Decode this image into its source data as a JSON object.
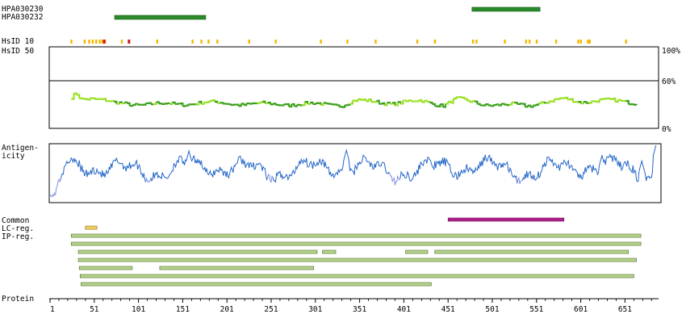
{
  "labels": {
    "antibody_1": "HPA030230",
    "antibody_2": "HPA030232",
    "hsid10": "HsID 10",
    "hsid50": "HsID 50",
    "pct100": "100%",
    "pct60": "60%",
    "pct0": "0%",
    "antigen_line1": "Antigen-",
    "antigen_line2": "icity",
    "common": "Common",
    "lc_reg": "LC-reg.",
    "ip_reg": "IP-reg.",
    "protein": "Protein"
  },
  "colors": {
    "antibody_bar": "#2a8a2a",
    "hsid_mark": "#f4b800",
    "hsid_mark_high": "#d01818",
    "identity_light": "#99e024",
    "identity_dark": "#3aa01a",
    "antigen_line": "#2466c8",
    "antigen_low": "#8090e0",
    "common_bar": "#b0208c",
    "lc_bar": "#f2d060",
    "ip_bar": "#b7d48c",
    "ip_stroke": "#4c6a2a"
  },
  "chart_data": {
    "type": "diagram",
    "protein_length": 690,
    "axis_ticks": [
      1,
      51,
      101,
      151,
      201,
      251,
      301,
      351,
      401,
      451,
      501,
      551,
      601,
      651
    ],
    "antibodies": [
      {
        "name": "HPA030230",
        "start": 478,
        "end": 555
      },
      {
        "name": "HPA030232",
        "start": 74,
        "end": 177
      }
    ],
    "hsid10_marks": [
      25,
      40,
      45,
      49,
      53,
      57,
      60,
      63,
      82,
      90,
      122,
      162,
      172,
      180,
      190,
      226,
      256,
      307,
      337,
      369,
      416,
      436,
      479,
      483,
      515,
      539,
      543,
      551,
      573,
      598,
      601,
      609,
      611,
      652
    ],
    "hsid10_high": [
      62,
      90
    ],
    "identity": {
      "ylim": [
        0,
        100
      ],
      "threshold": 60,
      "start": 25,
      "end": 665,
      "anchors": [
        [
          25,
          38
        ],
        [
          30,
          44
        ],
        [
          36,
          37
        ],
        [
          45,
          38
        ],
        [
          60,
          35
        ],
        [
          72,
          31
        ],
        [
          100,
          30
        ],
        [
          140,
          30
        ],
        [
          180,
          32
        ],
        [
          220,
          30
        ],
        [
          260,
          30
        ],
        [
          300,
          30
        ],
        [
          330,
          29
        ],
        [
          345,
          34
        ],
        [
          370,
          33
        ],
        [
          390,
          31
        ],
        [
          420,
          34
        ],
        [
          445,
          29
        ],
        [
          460,
          36
        ],
        [
          490,
          30
        ],
        [
          540,
          28
        ],
        [
          560,
          33
        ],
        [
          580,
          36
        ],
        [
          600,
          33
        ],
        [
          620,
          35
        ],
        [
          645,
          33
        ],
        [
          665,
          32
        ]
      ]
    },
    "antigenicity": {
      "start": 1,
      "end": 686,
      "lows": [
        [
          1,
          0.07
        ],
        [
          3,
          0.12
        ],
        [
          200,
          0.3
        ],
        [
          260,
          0.4
        ]
      ],
      "peaks": [
        [
          158,
          0.9
        ],
        [
          336,
          0.91
        ],
        [
          686,
          1.0
        ],
        [
          27,
          0.7
        ],
        [
          625,
          0.82
        ],
        [
          670,
          0.72
        ]
      ]
    },
    "common": [
      {
        "start": 451,
        "end": 582
      }
    ],
    "lc_reg": [
      {
        "start": 41,
        "end": 54
      }
    ],
    "ip_reg": [
      [
        {
          "start": 25,
          "end": 669
        }
      ],
      [
        {
          "start": 25,
          "end": 669
        }
      ],
      [
        {
          "start": 33,
          "end": 303
        },
        {
          "start": 309,
          "end": 324
        },
        {
          "start": 403,
          "end": 428
        },
        {
          "start": 436,
          "end": 655
        }
      ],
      [
        {
          "start": 33,
          "end": 664
        }
      ],
      [
        {
          "start": 34,
          "end": 94
        },
        {
          "start": 125,
          "end": 299
        }
      ],
      [
        {
          "start": 35,
          "end": 661
        }
      ],
      [
        {
          "start": 36,
          "end": 432
        }
      ]
    ]
  }
}
